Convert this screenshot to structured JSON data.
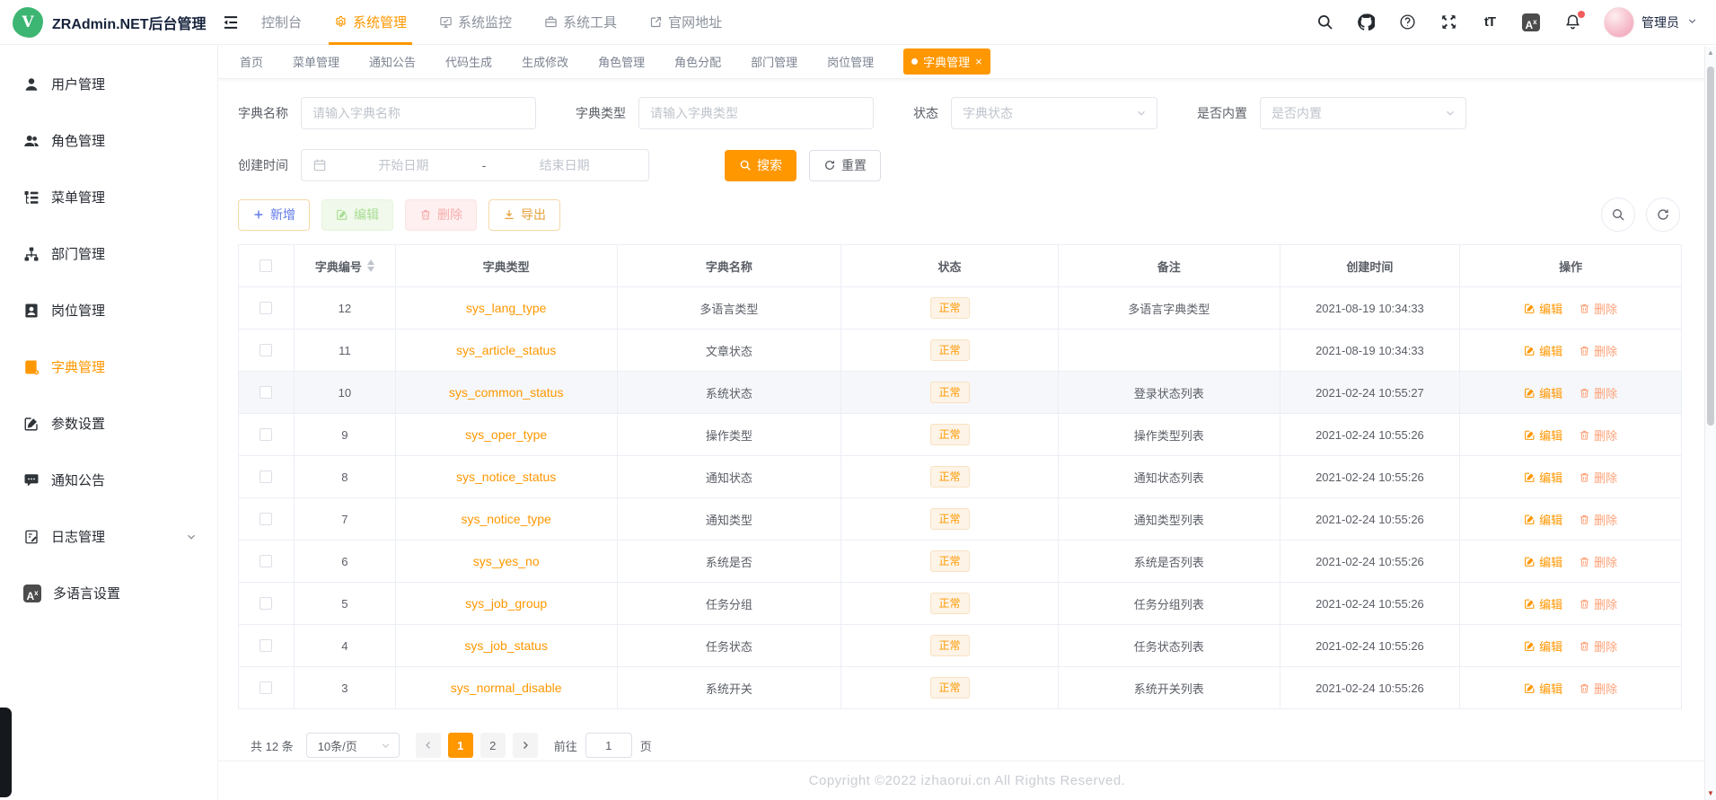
{
  "app": {
    "title": "ZRAdmin.NET后台管理",
    "logo_letter": "V"
  },
  "header": {
    "nav": [
      {
        "label": "控制台",
        "icon": null,
        "active": false
      },
      {
        "label": "系统管理",
        "icon": "gear-icon",
        "active": true
      },
      {
        "label": "系统监控",
        "icon": "monitor-icon",
        "active": false
      },
      {
        "label": "系统工具",
        "icon": "toolbox-icon",
        "active": false
      },
      {
        "label": "官网地址",
        "icon": "external-link-icon",
        "active": false
      }
    ],
    "tools": [
      {
        "name": "search-icon",
        "badge": false
      },
      {
        "name": "github-icon",
        "badge": false
      },
      {
        "name": "question-icon",
        "badge": false
      },
      {
        "name": "fullscreen-icon",
        "badge": false
      },
      {
        "name": "font-size-icon",
        "badge": false
      },
      {
        "name": "translate-icon",
        "badge": false
      },
      {
        "name": "bell-icon",
        "badge": true
      }
    ],
    "username": "管理员"
  },
  "tabs": [
    {
      "label": "首页",
      "active": false
    },
    {
      "label": "菜单管理",
      "active": false
    },
    {
      "label": "通知公告",
      "active": false
    },
    {
      "label": "代码生成",
      "active": false
    },
    {
      "label": "生成修改",
      "active": false
    },
    {
      "label": "角色管理",
      "active": false
    },
    {
      "label": "角色分配",
      "active": false
    },
    {
      "label": "部门管理",
      "active": false
    },
    {
      "label": "岗位管理",
      "active": false
    },
    {
      "label": "字典管理",
      "active": true,
      "close_glyph": "×"
    }
  ],
  "sidebar": [
    {
      "icon": "user-icon",
      "label": "用户管理",
      "active": false,
      "expandable": false
    },
    {
      "icon": "users-icon",
      "label": "角色管理",
      "active": false,
      "expandable": false
    },
    {
      "icon": "menu-list-icon",
      "label": "菜单管理",
      "active": false,
      "expandable": false
    },
    {
      "icon": "dept-icon",
      "label": "部门管理",
      "active": false,
      "expandable": false
    },
    {
      "icon": "post-icon",
      "label": "岗位管理",
      "active": false,
      "expandable": false
    },
    {
      "icon": "dict-icon",
      "label": "字典管理",
      "active": true,
      "expandable": false
    },
    {
      "icon": "edit-square-icon",
      "label": "参数设置",
      "active": false,
      "expandable": false
    },
    {
      "icon": "notice-icon",
      "label": "通知公告",
      "active": false,
      "expandable": false
    },
    {
      "icon": "log-icon",
      "label": "日志管理",
      "active": false,
      "expandable": true
    },
    {
      "icon": "i18n-icon",
      "label": "多语言设置",
      "active": false,
      "expandable": false
    }
  ],
  "search_form": {
    "name_label": "字典名称",
    "name_placeholder": "请输入字典名称",
    "type_label": "字典类型",
    "type_placeholder": "请输入字典类型",
    "status_label": "状态",
    "status_placeholder": "字典状态",
    "builtin_label": "是否内置",
    "builtin_placeholder": "是否内置",
    "date_label": "创建时间",
    "date_start_placeholder": "开始日期",
    "date_separator": "-",
    "date_end_placeholder": "结束日期",
    "search_button": "搜索",
    "reset_button": "重置"
  },
  "toolbar": {
    "add_label": "新增",
    "edit_label": "编辑",
    "delete_label": "删除",
    "export_label": "导出"
  },
  "table": {
    "columns": {
      "id": "字典编号",
      "type": "字典类型",
      "name": "字典名称",
      "status": "状态",
      "remark": "备注",
      "created": "创建时间",
      "ops": "操作"
    },
    "row_edit_label": "编辑",
    "row_delete_label": "删除",
    "rows": [
      {
        "id": "12",
        "type": "sys_lang_type",
        "name": "多语言类型",
        "status": "正常",
        "remark": "多语言字典类型",
        "created": "2021-08-19 10:34:33",
        "highlighted": false
      },
      {
        "id": "11",
        "type": "sys_article_status",
        "name": "文章状态",
        "status": "正常",
        "remark": "",
        "created": "2021-08-19 10:34:33",
        "highlighted": false
      },
      {
        "id": "10",
        "type": "sys_common_status",
        "name": "系统状态",
        "status": "正常",
        "remark": "登录状态列表",
        "created": "2021-02-24 10:55:27",
        "highlighted": true
      },
      {
        "id": "9",
        "type": "sys_oper_type",
        "name": "操作类型",
        "status": "正常",
        "remark": "操作类型列表",
        "created": "2021-02-24 10:55:26",
        "highlighted": false
      },
      {
        "id": "8",
        "type": "sys_notice_status",
        "name": "通知状态",
        "status": "正常",
        "remark": "通知状态列表",
        "created": "2021-02-24 10:55:26",
        "highlighted": false
      },
      {
        "id": "7",
        "type": "sys_notice_type",
        "name": "通知类型",
        "status": "正常",
        "remark": "通知类型列表",
        "created": "2021-02-24 10:55:26",
        "highlighted": false
      },
      {
        "id": "6",
        "type": "sys_yes_no",
        "name": "系统是否",
        "status": "正常",
        "remark": "系统是否列表",
        "created": "2021-02-24 10:55:26",
        "highlighted": false
      },
      {
        "id": "5",
        "type": "sys_job_group",
        "name": "任务分组",
        "status": "正常",
        "remark": "任务分组列表",
        "created": "2021-02-24 10:55:26",
        "highlighted": false
      },
      {
        "id": "4",
        "type": "sys_job_status",
        "name": "任务状态",
        "status": "正常",
        "remark": "任务状态列表",
        "created": "2021-02-24 10:55:26",
        "highlighted": false
      },
      {
        "id": "3",
        "type": "sys_normal_disable",
        "name": "系统开关",
        "status": "正常",
        "remark": "系统开关列表",
        "created": "2021-02-24 10:55:26",
        "highlighted": false
      }
    ]
  },
  "pagination": {
    "total_label": "共 12 条",
    "page_size": "10条/页",
    "pages": [
      "1",
      "2"
    ],
    "active_page": "1",
    "goto_label": "前往",
    "goto_value": "1",
    "unit_label": "页"
  },
  "footer": {
    "copyright": "Copyright ©2022 izhaorui.cn All Rights Reserved."
  },
  "colors": {
    "accent": "#ff9700",
    "logo_green": "#3db573",
    "status_normal_text": "#ff9900",
    "status_normal_bg": "#fdf3e6",
    "delete_link": "#ffa076",
    "notification_dot": "#f25c5c"
  }
}
